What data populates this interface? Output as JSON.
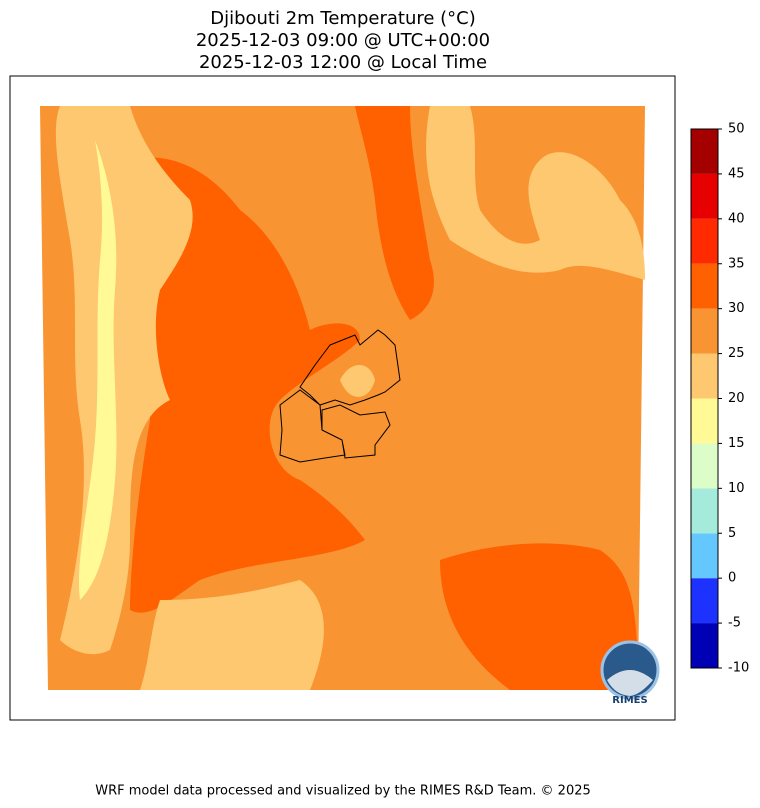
{
  "title": [
    "Djibouti 2m Temperature (°C)",
    "2025-12-03 09:00 @ UTC+00:00",
    "2025-12-03 12:00 @ Local Time"
  ],
  "colorbar": {
    "ticks": [
      -10,
      -5,
      0,
      5,
      10,
      15,
      20,
      25,
      30,
      35,
      40,
      45,
      50
    ],
    "colors": [
      "#0000b4",
      "#1e32ff",
      "#64c8ff",
      "#a5ebdc",
      "#dcfcc8",
      "#fffa96",
      "#fdc870",
      "#f99432",
      "#ff6000",
      "#ff2a00",
      "#e60000",
      "#a50000"
    ]
  },
  "logo_text": "RIMES",
  "footer": "WRF model data processed and visualized by the RIMES R&D Team. © 2025"
}
